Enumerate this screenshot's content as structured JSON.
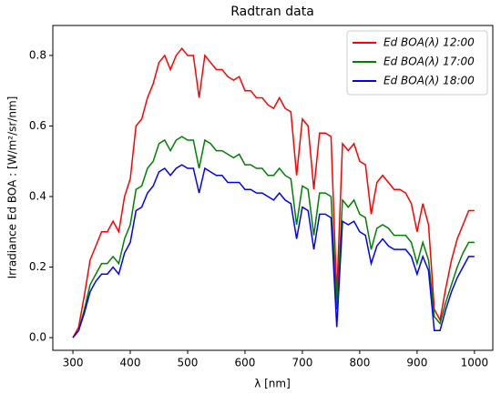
{
  "chart_data": {
    "type": "line",
    "title": "Radtran data",
    "xlabel": "λ [nm]",
    "ylabel": "Irradiance Ed BOA : [W/m²/sr/nm]",
    "x": [
      300,
      310,
      320,
      330,
      340,
      350,
      360,
      370,
      380,
      390,
      400,
      410,
      420,
      430,
      440,
      450,
      460,
      470,
      480,
      490,
      500,
      510,
      520,
      530,
      540,
      550,
      560,
      570,
      580,
      590,
      600,
      610,
      620,
      630,
      640,
      650,
      660,
      670,
      680,
      690,
      700,
      710,
      720,
      730,
      740,
      750,
      760,
      770,
      780,
      790,
      800,
      810,
      820,
      830,
      840,
      850,
      860,
      870,
      880,
      890,
      900,
      910,
      920,
      930,
      940,
      950,
      960,
      970,
      980,
      990,
      1000
    ],
    "series": [
      {
        "name": "Ed BOA(λ) 12:00",
        "color": "#ff0000",
        "values": [
          0,
          0.03,
          0.12,
          0.22,
          0.26,
          0.3,
          0.3,
          0.33,
          0.3,
          0.4,
          0.45,
          0.6,
          0.62,
          0.68,
          0.72,
          0.78,
          0.8,
          0.76,
          0.8,
          0.82,
          0.8,
          0.8,
          0.68,
          0.8,
          0.78,
          0.76,
          0.76,
          0.74,
          0.73,
          0.74,
          0.7,
          0.7,
          0.68,
          0.68,
          0.66,
          0.65,
          0.68,
          0.65,
          0.64,
          0.46,
          0.62,
          0.6,
          0.42,
          0.58,
          0.58,
          0.57,
          0.12,
          0.55,
          0.53,
          0.55,
          0.5,
          0.49,
          0.35,
          0.44,
          0.46,
          0.44,
          0.42,
          0.42,
          0.41,
          0.38,
          0.3,
          0.38,
          0.32,
          0.08,
          0.05,
          0.14,
          0.22,
          0.28,
          0.32,
          0.36,
          0.36
        ]
      },
      {
        "name": "Ed BOA(λ) 17:00",
        "color": "#008000",
        "values": [
          0,
          0.02,
          0.08,
          0.15,
          0.18,
          0.21,
          0.21,
          0.23,
          0.21,
          0.28,
          0.32,
          0.42,
          0.43,
          0.48,
          0.5,
          0.55,
          0.56,
          0.53,
          0.56,
          0.57,
          0.56,
          0.56,
          0.48,
          0.56,
          0.55,
          0.53,
          0.53,
          0.52,
          0.51,
          0.52,
          0.49,
          0.49,
          0.48,
          0.48,
          0.46,
          0.46,
          0.48,
          0.46,
          0.45,
          0.32,
          0.43,
          0.42,
          0.29,
          0.41,
          0.41,
          0.4,
          0.08,
          0.39,
          0.37,
          0.39,
          0.35,
          0.34,
          0.25,
          0.31,
          0.32,
          0.31,
          0.29,
          0.29,
          0.29,
          0.27,
          0.21,
          0.27,
          0.22,
          0.06,
          0.04,
          0.1,
          0.15,
          0.2,
          0.24,
          0.27,
          0.27
        ]
      },
      {
        "name": "Ed BOA(λ) 18:00",
        "color": "#0000ff",
        "values": [
          0,
          0.02,
          0.07,
          0.13,
          0.16,
          0.18,
          0.18,
          0.2,
          0.18,
          0.24,
          0.27,
          0.36,
          0.37,
          0.41,
          0.43,
          0.47,
          0.48,
          0.46,
          0.48,
          0.49,
          0.48,
          0.48,
          0.41,
          0.48,
          0.47,
          0.46,
          0.46,
          0.44,
          0.44,
          0.44,
          0.42,
          0.42,
          0.41,
          0.41,
          0.4,
          0.39,
          0.41,
          0.39,
          0.38,
          0.28,
          0.37,
          0.36,
          0.25,
          0.35,
          0.35,
          0.34,
          0.03,
          0.33,
          0.32,
          0.33,
          0.3,
          0.29,
          0.21,
          0.26,
          0.28,
          0.26,
          0.25,
          0.25,
          0.25,
          0.23,
          0.18,
          0.23,
          0.19,
          0.02,
          0.02,
          0.08,
          0.13,
          0.17,
          0.2,
          0.23,
          0.23
        ]
      }
    ],
    "xlim": [
      265,
      1032
    ],
    "ylim": [
      -0.036,
      0.885
    ],
    "xticks": [
      300,
      400,
      500,
      600,
      700,
      800,
      900,
      1000
    ],
    "yticks": [
      {
        "value": 0,
        "label": "0.0"
      },
      0.2,
      0.4,
      0.6,
      0.8
    ],
    "grid": false,
    "legend": "upper right"
  }
}
